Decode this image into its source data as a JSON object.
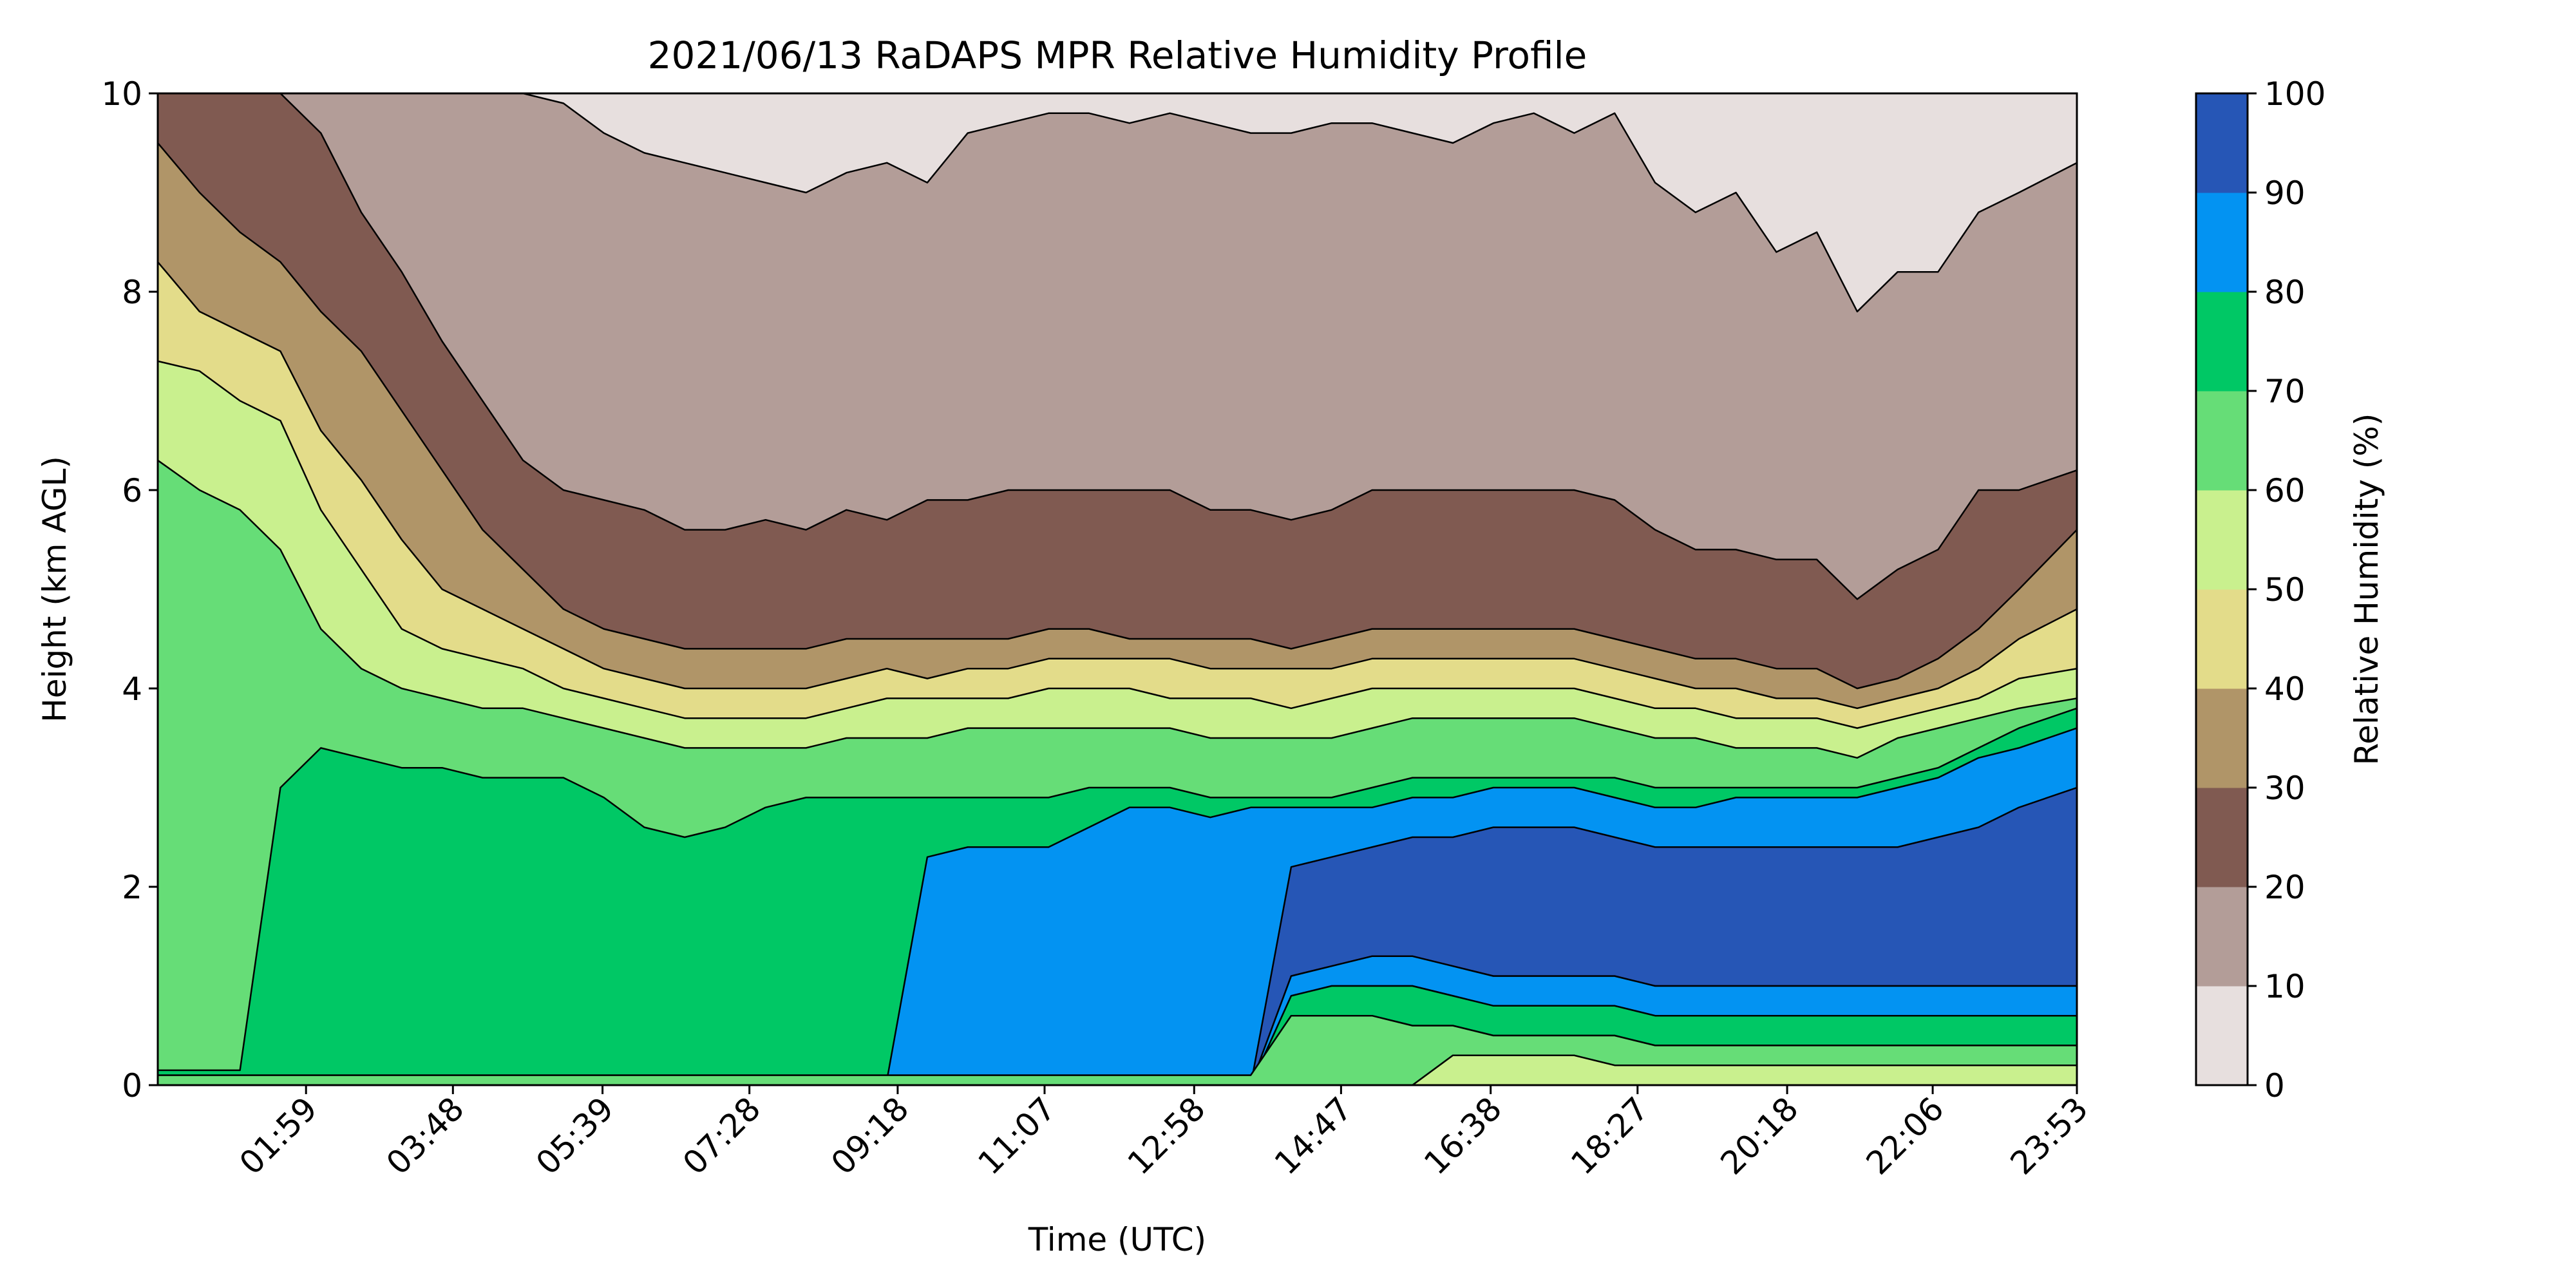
{
  "chart_data": {
    "type": "contour",
    "title": "2021/06/13 RaDAPS MPR Relative Humidity Profile",
    "xlabel": "Time (UTC)",
    "ylabel": "Height (km AGL)",
    "xlim": [
      "00:09",
      "23:53"
    ],
    "ylim": [
      0,
      10
    ],
    "xticks": [
      "01:59",
      "03:48",
      "05:39",
      "07:28",
      "09:18",
      "11:07",
      "12:58",
      "14:47",
      "16:38",
      "18:27",
      "20:18",
      "22:06",
      "23:53"
    ],
    "yticks": [
      "0",
      "2",
      "4",
      "6",
      "8",
      "10"
    ],
    "colorbar": {
      "label": "Relative Humidity (%)",
      "levels": [
        0,
        10,
        20,
        30,
        40,
        50,
        60,
        70,
        80,
        90,
        100
      ],
      "tick_labels": [
        "0",
        "10",
        "20",
        "30",
        "40",
        "50",
        "60",
        "70",
        "80",
        "90",
        "100"
      ],
      "colors": [
        "#e7dfde",
        "#b39d98",
        "#805a51",
        "#b09568",
        "#e3dc8a",
        "#c9f08e",
        "#66dd77",
        "#00c865",
        "#0393f2",
        "#2656b6"
      ]
    },
    "contour_thresholds_km": {
      "times": [
        "00:09",
        "00:40",
        "01:10",
        "01:40",
        "02:10",
        "02:40",
        "03:10",
        "03:40",
        "04:10",
        "04:40",
        "05:10",
        "05:40",
        "06:10",
        "06:40",
        "07:10",
        "07:40",
        "08:10",
        "08:40",
        "09:10",
        "09:40",
        "10:10",
        "10:40",
        "11:10",
        "11:40",
        "12:10",
        "12:40",
        "13:10",
        "13:40",
        "14:10",
        "14:40",
        "15:10",
        "15:40",
        "16:10",
        "16:40",
        "17:10",
        "17:40",
        "18:10",
        "18:40",
        "19:10",
        "19:40",
        "20:10",
        "20:40",
        "21:10",
        "21:40",
        "22:10",
        "22:40",
        "23:10",
        "23:53"
      ],
      "rh10": [
        10,
        10,
        10,
        10,
        10,
        10,
        10,
        10,
        10,
        10,
        9.9,
        9.6,
        9.4,
        9.3,
        9.2,
        9.1,
        9.0,
        9.2,
        9.3,
        9.1,
        9.6,
        9.7,
        9.8,
        9.8,
        9.7,
        9.8,
        9.7,
        9.6,
        9.6,
        9.7,
        9.7,
        9.6,
        9.5,
        9.7,
        9.8,
        9.6,
        9.8,
        9.1,
        8.8,
        9.0,
        8.4,
        8.6,
        7.8,
        8.2,
        8.2,
        8.8,
        9.0,
        9.3
      ],
      "rh20": [
        10,
        10,
        10,
        10,
        9.6,
        8.8,
        8.2,
        7.5,
        6.9,
        6.3,
        6.0,
        5.9,
        5.8,
        5.6,
        5.6,
        5.7,
        5.6,
        5.8,
        5.7,
        5.9,
        5.9,
        6.0,
        6.0,
        6.0,
        6.0,
        6.0,
        5.8,
        5.8,
        5.7,
        5.8,
        6.0,
        6.0,
        6.0,
        6.0,
        6.0,
        6.0,
        5.9,
        5.6,
        5.4,
        5.4,
        5.3,
        5.3,
        4.9,
        5.2,
        5.4,
        6.0,
        6.0,
        6.2
      ],
      "rh30": [
        9.5,
        9.0,
        8.6,
        8.3,
        7.8,
        7.4,
        6.8,
        6.2,
        5.6,
        5.2,
        4.8,
        4.6,
        4.5,
        4.4,
        4.4,
        4.4,
        4.4,
        4.5,
        4.5,
        4.5,
        4.5,
        4.5,
        4.6,
        4.6,
        4.5,
        4.5,
        4.5,
        4.5,
        4.4,
        4.5,
        4.6,
        4.6,
        4.6,
        4.6,
        4.6,
        4.6,
        4.5,
        4.4,
        4.3,
        4.3,
        4.2,
        4.2,
        4.0,
        4.1,
        4.3,
        4.6,
        5.0,
        5.6
      ],
      "rh40": [
        8.3,
        7.8,
        7.6,
        7.4,
        6.6,
        6.1,
        5.5,
        5.0,
        4.8,
        4.6,
        4.4,
        4.2,
        4.1,
        4.0,
        4.0,
        4.0,
        4.0,
        4.1,
        4.2,
        4.1,
        4.2,
        4.2,
        4.3,
        4.3,
        4.3,
        4.3,
        4.2,
        4.2,
        4.2,
        4.2,
        4.3,
        4.3,
        4.3,
        4.3,
        4.3,
        4.3,
        4.2,
        4.1,
        4.0,
        4.0,
        3.9,
        3.9,
        3.8,
        3.9,
        4.0,
        4.2,
        4.5,
        4.8
      ],
      "rh50": [
        7.3,
        7.2,
        6.9,
        6.7,
        5.8,
        5.2,
        4.6,
        4.4,
        4.3,
        4.2,
        4.0,
        3.9,
        3.8,
        3.7,
        3.7,
        3.7,
        3.7,
        3.8,
        3.9,
        3.9,
        3.9,
        3.9,
        4.0,
        4.0,
        4.0,
        3.9,
        3.9,
        3.9,
        3.8,
        3.9,
        4.0,
        4.0,
        4.0,
        4.0,
        4.0,
        4.0,
        3.9,
        3.8,
        3.8,
        3.7,
        3.7,
        3.7,
        3.6,
        3.7,
        3.8,
        3.9,
        4.1,
        4.2
      ],
      "rh60": [
        6.3,
        6.0,
        5.8,
        5.4,
        4.6,
        4.2,
        4.0,
        3.9,
        3.8,
        3.8,
        3.7,
        3.6,
        3.5,
        3.4,
        3.4,
        3.4,
        3.4,
        3.5,
        3.5,
        3.5,
        3.6,
        3.6,
        3.6,
        3.6,
        3.6,
        3.6,
        3.5,
        3.5,
        3.5,
        3.5,
        3.6,
        3.7,
        3.7,
        3.7,
        3.7,
        3.7,
        3.6,
        3.5,
        3.5,
        3.4,
        3.4,
        3.4,
        3.3,
        3.5,
        3.6,
        3.7,
        3.8,
        3.9
      ],
      "rh70": [
        0.15,
        0.15,
        0.15,
        3.0,
        3.4,
        3.3,
        3.2,
        3.2,
        3.1,
        3.1,
        3.1,
        2.9,
        2.6,
        2.5,
        2.6,
        2.8,
        2.9,
        2.9,
        2.9,
        2.9,
        2.9,
        2.9,
        2.9,
        3.0,
        3.0,
        3.0,
        2.9,
        2.9,
        2.9,
        2.9,
        3.0,
        3.1,
        3.1,
        3.1,
        3.1,
        3.1,
        3.1,
        3.0,
        3.0,
        3.0,
        3.0,
        3.0,
        3.0,
        3.1,
        3.2,
        3.4,
        3.6,
        3.8
      ],
      "rh80": [
        0.02,
        0.02,
        0.02,
        0.02,
        0.02,
        0.02,
        0.02,
        0.02,
        0.02,
        0.02,
        0.02,
        0.02,
        0.02,
        0.04,
        0.06,
        0.07,
        0.07,
        0.06,
        0.05,
        2.3,
        2.4,
        2.4,
        2.4,
        2.6,
        2.8,
        2.8,
        2.7,
        2.8,
        2.8,
        2.8,
        2.8,
        2.9,
        2.9,
        3.0,
        3.0,
        3.0,
        2.9,
        2.8,
        2.8,
        2.9,
        2.9,
        2.9,
        2.9,
        3.0,
        3.1,
        3.3,
        3.4,
        3.6
      ],
      "rh90": [
        0,
        0,
        0,
        0,
        0,
        0,
        0,
        0,
        0,
        0,
        0,
        0,
        0,
        0,
        0,
        0,
        0,
        0,
        0,
        0,
        0,
        0,
        0,
        0,
        0,
        0,
        0,
        0,
        2.2,
        2.3,
        2.4,
        2.5,
        2.5,
        2.6,
        2.6,
        2.6,
        2.5,
        2.4,
        2.4,
        2.4,
        2.4,
        2.4,
        2.4,
        2.4,
        2.5,
        2.6,
        2.8,
        3.0
      ],
      "rh90_low": [
        0,
        0,
        0,
        0,
        0,
        0,
        0,
        0,
        0,
        0,
        0,
        0,
        0,
        0,
        0,
        0,
        0,
        0,
        0,
        0,
        0,
        0,
        0,
        0,
        0,
        0,
        0,
        0,
        1.1,
        1.2,
        1.3,
        1.3,
        1.2,
        1.1,
        1.1,
        1.1,
        1.1,
        1.0,
        1.0,
        1.0,
        1.0,
        1.0,
        1.0,
        1.0,
        1.0,
        1.0,
        1.0,
        1.0
      ],
      "rh80_low": [
        0,
        0,
        0,
        0,
        0,
        0,
        0,
        0,
        0,
        0,
        0,
        0,
        0,
        0,
        0,
        0,
        0,
        0,
        0,
        0,
        0,
        0,
        0,
        0,
        0,
        0,
        0,
        0,
        0.9,
        1.0,
        1.0,
        1.0,
        0.9,
        0.8,
        0.8,
        0.8,
        0.8,
        0.7,
        0.7,
        0.7,
        0.7,
        0.7,
        0.7,
        0.7,
        0.7,
        0.7,
        0.7,
        0.7
      ],
      "rh70_low": [
        0.1,
        0.1,
        0.1,
        0.1,
        0.1,
        0.1,
        0.1,
        0.1,
        0.1,
        0.1,
        0.1,
        0.1,
        0.1,
        0.1,
        0.1,
        0.1,
        0.1,
        0.1,
        0.1,
        0.1,
        0.1,
        0.1,
        0.1,
        0.1,
        0.1,
        0.1,
        0.1,
        0.1,
        0.7,
        0.7,
        0.7,
        0.6,
        0.6,
        0.5,
        0.5,
        0.5,
        0.5,
        0.4,
        0.4,
        0.4,
        0.4,
        0.4,
        0.4,
        0.4,
        0.4,
        0.4,
        0.4,
        0.4
      ],
      "rh60_low": [
        0,
        0,
        0,
        0,
        0,
        0,
        0,
        0,
        0,
        0,
        0,
        0,
        0,
        0,
        0,
        0,
        0,
        0,
        0,
        0,
        0,
        0,
        0,
        0,
        0,
        0,
        0,
        0,
        0,
        0,
        0,
        0,
        0.3,
        0.3,
        0.3,
        0.3,
        0.2,
        0.2,
        0.2,
        0.2,
        0.2,
        0.2,
        0.2,
        0.2,
        0.2,
        0.2,
        0.2,
        0.2
      ]
    }
  }
}
